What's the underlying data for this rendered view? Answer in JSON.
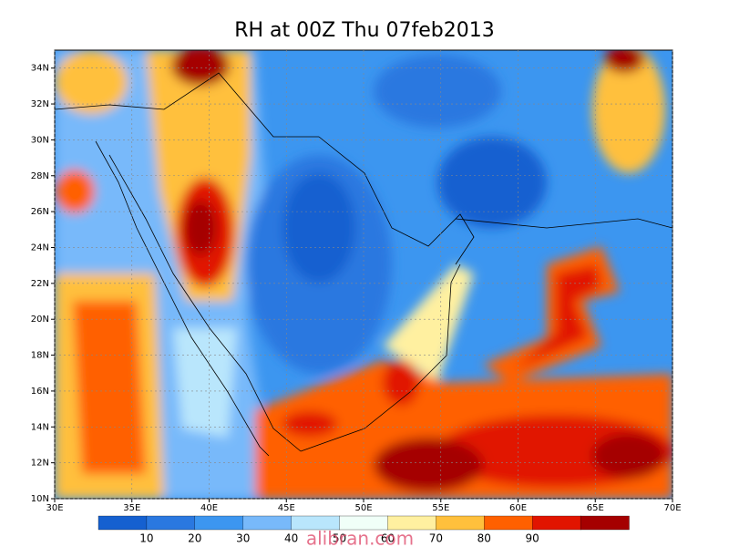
{
  "title": "RH at 00Z Thu 07feb2013",
  "map": {
    "lonlim": [
      30,
      70
    ],
    "latlim": [
      10,
      35
    ],
    "lonticks": [
      {
        "value": 30,
        "label": "30E"
      },
      {
        "value": 35,
        "label": "35E"
      },
      {
        "value": 40,
        "label": "40E"
      },
      {
        "value": 45,
        "label": "45E"
      },
      {
        "value": 50,
        "label": "50E"
      },
      {
        "value": 55,
        "label": "55E"
      },
      {
        "value": 60,
        "label": "60E"
      },
      {
        "value": 65,
        "label": "65E"
      },
      {
        "value": 70,
        "label": "70E"
      }
    ],
    "latticks": [
      {
        "value": 10,
        "label": "10N"
      },
      {
        "value": 12,
        "label": "12N"
      },
      {
        "value": 14,
        "label": "14N"
      },
      {
        "value": 16,
        "label": "16N"
      },
      {
        "value": 18,
        "label": "18N"
      },
      {
        "value": 20,
        "label": "20N"
      },
      {
        "value": 22,
        "label": "22N"
      },
      {
        "value": 24,
        "label": "24N"
      },
      {
        "value": 26,
        "label": "26N"
      },
      {
        "value": 28,
        "label": "28N"
      },
      {
        "value": 30,
        "label": "30N"
      },
      {
        "value": 32,
        "label": "32N"
      },
      {
        "value": 34,
        "label": "34N"
      }
    ]
  },
  "colorbar": {
    "levels": [
      10,
      20,
      30,
      40,
      50,
      60,
      70,
      80,
      90
    ],
    "colors": [
      "#1560d0",
      "#2a78e0",
      "#3c96f0",
      "#78b9fa",
      "#b9e6fc",
      "#f0fff8",
      "#fff0a0",
      "#ffc03c",
      "#ff6000",
      "#e11400",
      "#a50000"
    ]
  },
  "watermark": "alibran.com"
}
